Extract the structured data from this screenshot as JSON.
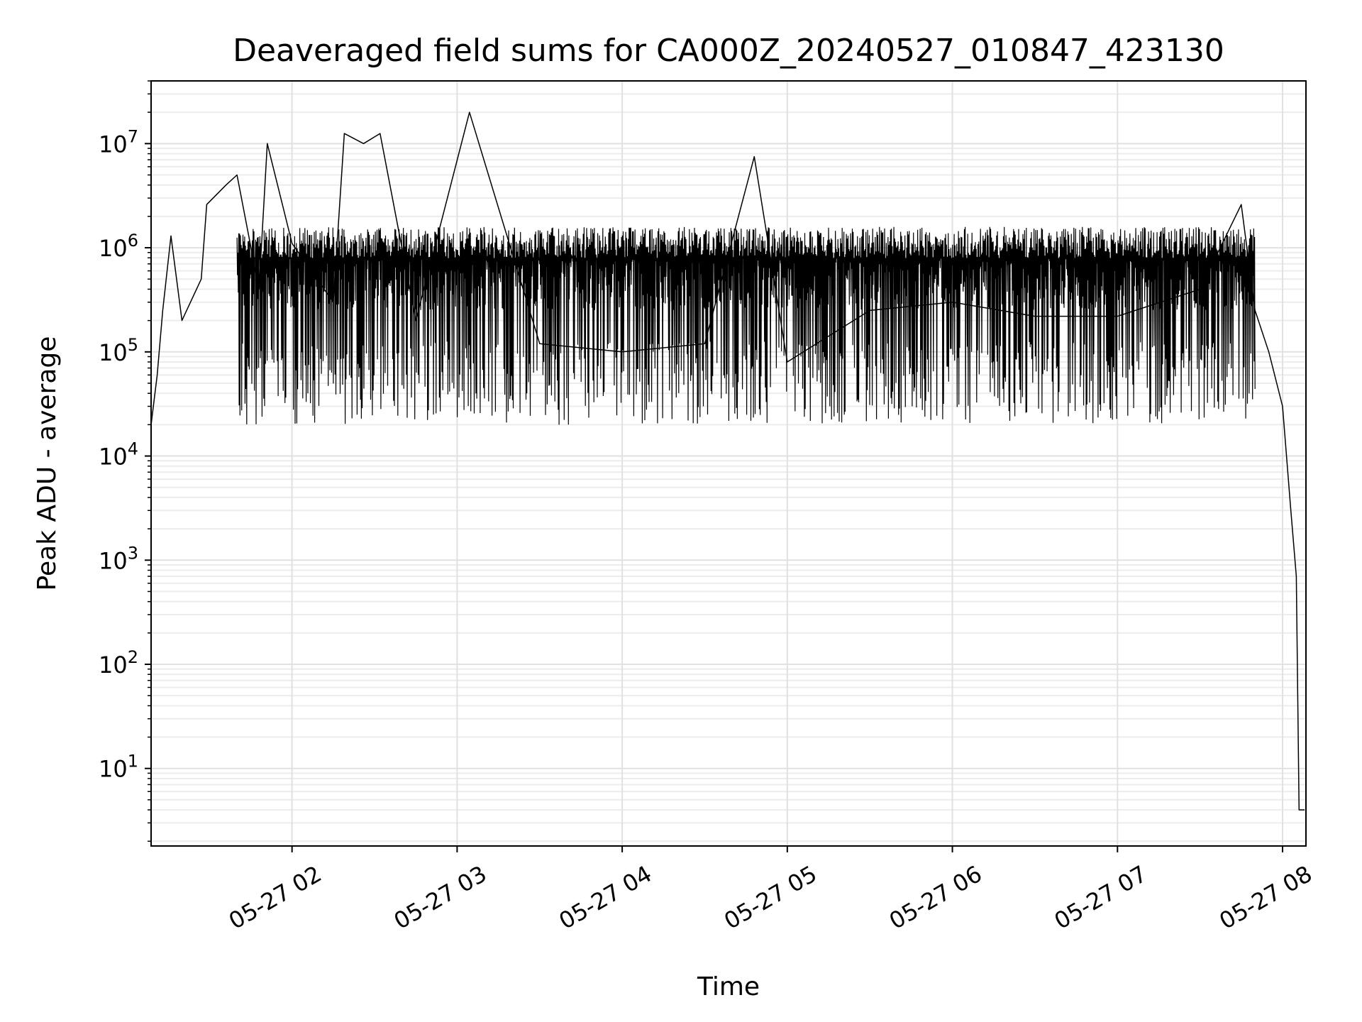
{
  "chart_data": {
    "type": "line",
    "title": "Deaveraged field sums for CA000Z_20240527_010847_423130",
    "xlabel": "Time",
    "ylabel": "Peak ADU - average",
    "yscale": "log",
    "x_axis_kind": "datetime",
    "xlim": [
      "2024-05-27 01:08:47",
      "2024-05-27 08:08:30"
    ],
    "ylim": [
      1.8,
      40000000
    ],
    "grid": "major and minor, light gray",
    "legend": "none",
    "line_color": "#000000",
    "x_ticks": [
      {
        "time": "2024-05-27 02:00",
        "label": "05-27 02"
      },
      {
        "time": "2024-05-27 03:00",
        "label": "05-27 03"
      },
      {
        "time": "2024-05-27 04:00",
        "label": "05-27 04"
      },
      {
        "time": "2024-05-27 05:00",
        "label": "05-27 05"
      },
      {
        "time": "2024-05-27 06:00",
        "label": "05-27 06"
      },
      {
        "time": "2024-05-27 07:00",
        "label": "05-27 07"
      },
      {
        "time": "2024-05-27 08:00",
        "label": "05-27 08"
      }
    ],
    "y_ticks": [
      {
        "value": 10,
        "base": "10",
        "exp": "1"
      },
      {
        "value": 100,
        "base": "10",
        "exp": "2"
      },
      {
        "value": 1000,
        "base": "10",
        "exp": "3"
      },
      {
        "value": 10000,
        "base": "10",
        "exp": "4"
      },
      {
        "value": 100000,
        "base": "10",
        "exp": "5"
      },
      {
        "value": 1000000,
        "base": "10",
        "exp": "6"
      },
      {
        "value": 10000000,
        "base": "10",
        "exp": "7"
      }
    ],
    "series": [
      {
        "values": [
          {
            "x": "2024-05-27 01:08:47",
            "y": 20000
          },
          {
            "x": "2024-05-27 01:11:00",
            "y": 60000
          },
          {
            "x": "2024-05-27 01:13:00",
            "y": 250000
          },
          {
            "x": "2024-05-27 01:16:00",
            "y": 1300000
          },
          {
            "x": "2024-05-27 01:20:00",
            "y": 200000
          },
          {
            "x": "2024-05-27 01:27:00",
            "y": 500000
          },
          {
            "x": "2024-05-27 01:29:00",
            "y": 2600000
          },
          {
            "x": "2024-05-27 01:36:00",
            "y": 4000000
          },
          {
            "x": "2024-05-27 01:40:00",
            "y": 5000000
          },
          {
            "x": "2024-05-27 01:48:00",
            "y": 400000
          },
          {
            "x": "2024-05-27 01:51:00",
            "y": 10000000
          },
          {
            "x": "2024-05-27 02:00:00",
            "y": 1100000
          },
          {
            "x": "2024-05-27 02:15:00",
            "y": 300000
          },
          {
            "x": "2024-05-27 02:19:00",
            "y": 12500000
          },
          {
            "x": "2024-05-27 02:26:00",
            "y": 10000000
          },
          {
            "x": "2024-05-27 02:32:00",
            "y": 12500000
          },
          {
            "x": "2024-05-27 02:45:00",
            "y": 200000
          },
          {
            "x": "2024-05-27 03:04:30",
            "y": 20000000
          },
          {
            "x": "2024-05-27 03:30:00",
            "y": 120000
          },
          {
            "x": "2024-05-27 04:00:00",
            "y": 100000
          },
          {
            "x": "2024-05-27 04:30:00",
            "y": 120000
          },
          {
            "x": "2024-05-27 04:48:00",
            "y": 7500000
          },
          {
            "x": "2024-05-27 05:00:00",
            "y": 80000
          },
          {
            "x": "2024-05-27 05:30:00",
            "y": 250000
          },
          {
            "x": "2024-05-27 06:00:00",
            "y": 300000
          },
          {
            "x": "2024-05-27 06:30:00",
            "y": 220000
          },
          {
            "x": "2024-05-27 07:00:00",
            "y": 220000
          },
          {
            "x": "2024-05-27 07:30:00",
            "y": 400000
          },
          {
            "x": "2024-05-27 07:45:00",
            "y": 2600000
          },
          {
            "x": "2024-05-27 07:50:00",
            "y": 250000
          },
          {
            "x": "2024-05-27 07:55:00",
            "y": 100000
          },
          {
            "x": "2024-05-27 08:00:00",
            "y": 30000
          },
          {
            "x": "2024-05-27 08:03:00",
            "y": 3000
          },
          {
            "x": "2024-05-27 08:05:00",
            "y": 700
          },
          {
            "x": "2024-05-27 08:06:00",
            "y": 4
          },
          {
            "x": "2024-05-27 08:08:00",
            "y": 4
          }
        ]
      }
    ]
  }
}
